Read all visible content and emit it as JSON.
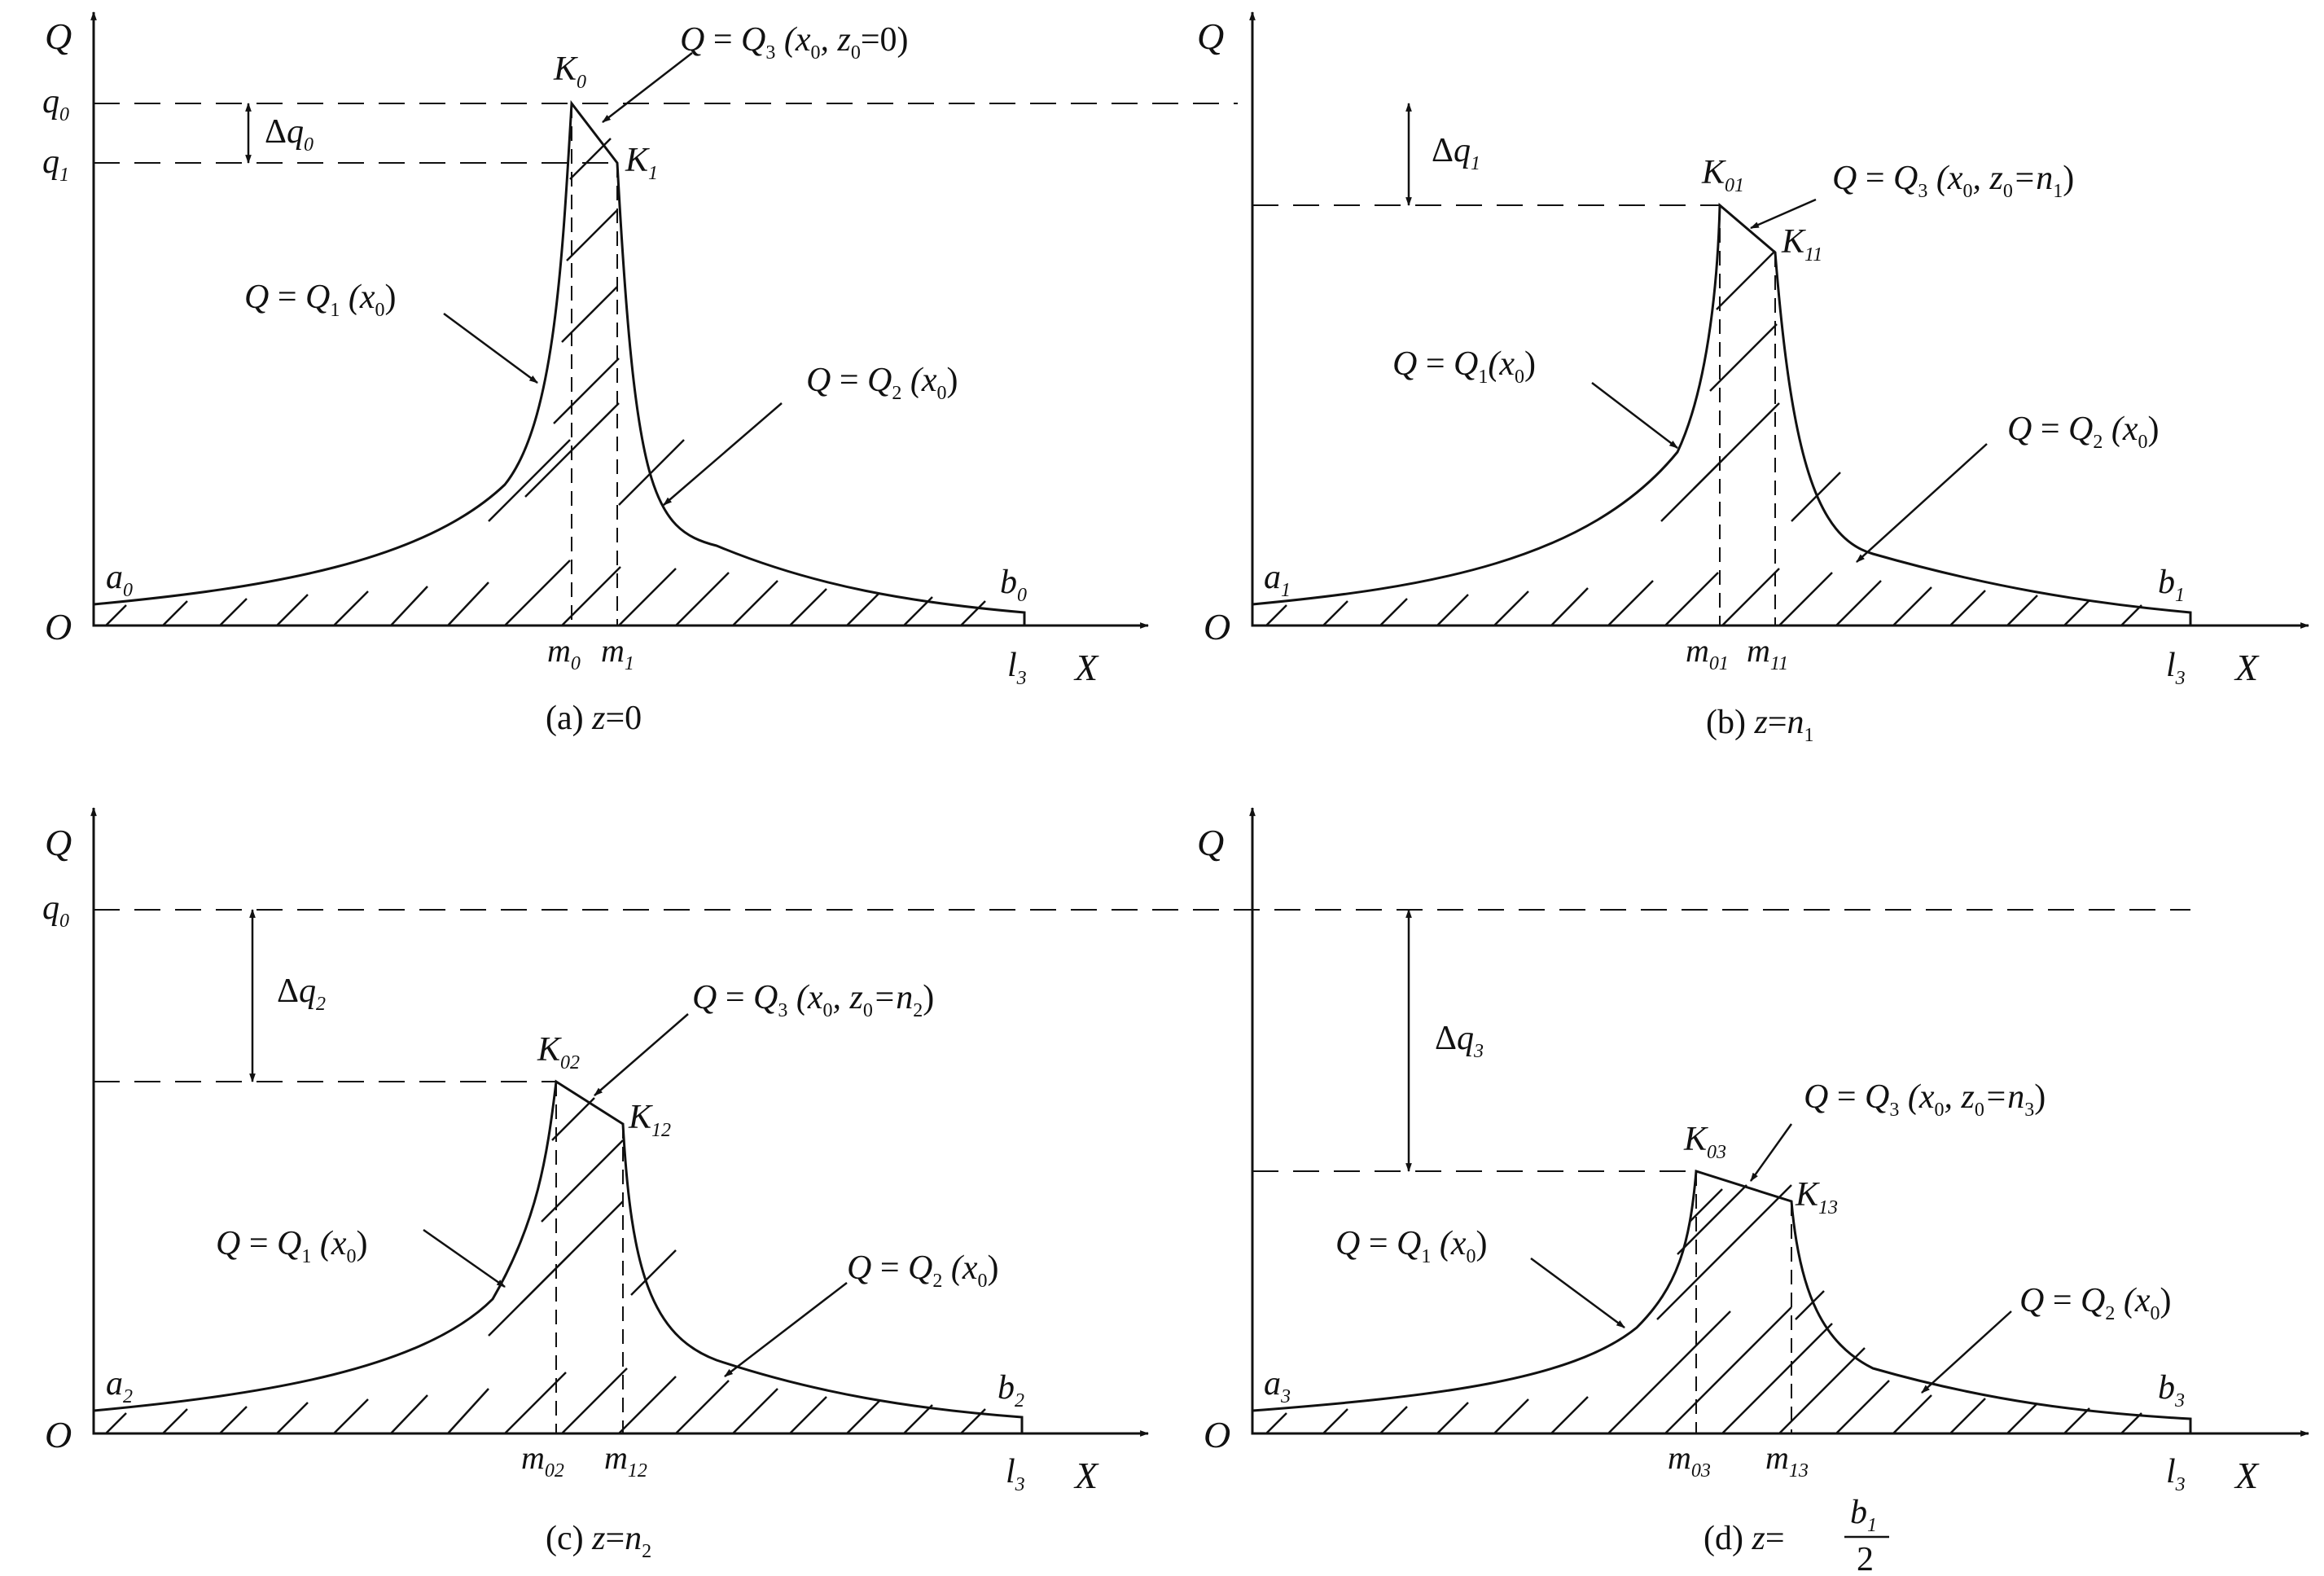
{
  "panels": [
    {
      "id": "a",
      "caption": {
        "prefix": "(a) ",
        "var": "z",
        "eq": "=",
        "val": "0",
        "val_sub": ""
      },
      "y_axis": "Q",
      "x_axis": "X",
      "origin": "O",
      "q0": {
        "base": "q",
        "sub": "0"
      },
      "q1": {
        "base": "q",
        "sub": "1"
      },
      "delta": {
        "sym": "Δ",
        "base": "q",
        "sub": "0"
      },
      "start": {
        "base": "a",
        "sub": "0"
      },
      "end": {
        "base": "b",
        "sub": "0"
      },
      "xend": {
        "base": "l",
        "sub": "3"
      },
      "peakK": {
        "base": "K",
        "sub": "0"
      },
      "stepK": {
        "base": "K",
        "sub": "1"
      },
      "m_left": {
        "base": "m",
        "sub": "0"
      },
      "m_right": {
        "base": "m",
        "sub": "1"
      },
      "curve1": {
        "q": "Q",
        "eq": " = ",
        "f": "Q",
        "fsub": "1",
        "arg": " (x",
        "argsub": "0",
        "close": ")"
      },
      "curve2": {
        "q": "Q",
        "eq": " = ",
        "f": "Q",
        "fsub": "2",
        "arg": " (x",
        "argsub": "0",
        "close": ")"
      },
      "curve3": {
        "q": "Q",
        "eq": " = ",
        "f": "Q",
        "fsub": "3",
        "arg": " (x",
        "argsub": "0",
        "mid": ", z",
        "midsub": "0",
        "rest": "=0)"
      }
    },
    {
      "id": "b",
      "caption": {
        "prefix": "(b) ",
        "var": "z",
        "eq": "=",
        "val": "n",
        "val_sub": "1"
      },
      "y_axis": "Q",
      "x_axis": "X",
      "origin": "O",
      "delta": {
        "sym": "Δ",
        "base": "q",
        "sub": "1"
      },
      "start": {
        "base": "a",
        "sub": "1"
      },
      "end": {
        "base": "b",
        "sub": "1"
      },
      "xend": {
        "base": "l",
        "sub": "3"
      },
      "peakK": {
        "base": "K",
        "sub": "01"
      },
      "stepK": {
        "base": "K",
        "sub": "11"
      },
      "m_left": {
        "base": "m",
        "sub": "01"
      },
      "m_right": {
        "base": "m",
        "sub": "11"
      },
      "curve1": {
        "q": "Q",
        "eq": " = ",
        "f": "Q",
        "fsub": "1",
        "arg": "(x",
        "argsub": "0",
        "close": ")"
      },
      "curve2": {
        "q": "Q",
        "eq": " = ",
        "f": "Q",
        "fsub": "2",
        "arg": " (x",
        "argsub": "0",
        "close": ")"
      },
      "curve3": {
        "q": "Q",
        "eq": " = ",
        "f": "Q",
        "fsub": "3",
        "arg": " (x",
        "argsub": "0",
        "mid": ", z",
        "midsub": "0",
        "rest": "=n",
        "restsub": "1",
        "tail": ")"
      }
    },
    {
      "id": "c",
      "caption": {
        "prefix": "(c) ",
        "var": "z",
        "eq": "=",
        "val": "n",
        "val_sub": "2"
      },
      "y_axis": "Q",
      "x_axis": "X",
      "origin": "O",
      "q0": {
        "base": "q",
        "sub": "0"
      },
      "delta": {
        "sym": "Δ",
        "base": "q",
        "sub": "2"
      },
      "start": {
        "base": "a",
        "sub": "2"
      },
      "end": {
        "base": "b",
        "sub": "2"
      },
      "xend": {
        "base": "l",
        "sub": "3"
      },
      "peakK": {
        "base": "K",
        "sub": "02"
      },
      "stepK": {
        "base": "K",
        "sub": "12"
      },
      "m_left": {
        "base": "m",
        "sub": "02"
      },
      "m_right": {
        "base": "m",
        "sub": "12"
      },
      "curve1": {
        "q": "Q",
        "eq": " = ",
        "f": "Q",
        "fsub": "1",
        "arg": " (x",
        "argsub": "0",
        "close": ")"
      },
      "curve2": {
        "q": "Q",
        "eq": " = ",
        "f": "Q",
        "fsub": "2",
        "arg": " (x",
        "argsub": "0",
        "close": ")"
      },
      "curve3": {
        "q": "Q",
        "eq": " = ",
        "f": "Q",
        "fsub": "3",
        "arg": " (x",
        "argsub": "0",
        "mid": ", z",
        "midsub": "0",
        "rest": "=n",
        "restsub": "2",
        "tail": ")"
      }
    },
    {
      "id": "d",
      "caption": {
        "prefix": "(d) ",
        "var": "z",
        "eq": "=",
        "num": "b",
        "num_sub": "1",
        "den": "2"
      },
      "y_axis": "Q",
      "x_axis": "X",
      "origin": "O",
      "delta": {
        "sym": "Δ",
        "base": "q",
        "sub": "3"
      },
      "start": {
        "base": "a",
        "sub": "3"
      },
      "end": {
        "base": "b",
        "sub": "3"
      },
      "xend": {
        "base": "l",
        "sub": "3"
      },
      "peakK": {
        "base": "K",
        "sub": "03"
      },
      "stepK": {
        "base": "K",
        "sub": "13"
      },
      "m_left": {
        "base": "m",
        "sub": "03"
      },
      "m_right": {
        "base": "m",
        "sub": "13"
      },
      "curve1": {
        "q": "Q",
        "eq": " = ",
        "f": "Q",
        "fsub": "1",
        "arg": " (x",
        "argsub": "0",
        "close": ")"
      },
      "curve2": {
        "q": "Q",
        "eq": " = ",
        "f": "Q",
        "fsub": "2",
        "arg": " (x",
        "argsub": "0",
        "close": ")"
      },
      "curve3": {
        "q": "Q",
        "eq": " = ",
        "f": "Q",
        "fsub": "3",
        "arg": " (x",
        "argsub": "0",
        "mid": ", z",
        "midsub": "0",
        "rest": "=n",
        "restsub": "3",
        "tail": ")"
      }
    }
  ]
}
